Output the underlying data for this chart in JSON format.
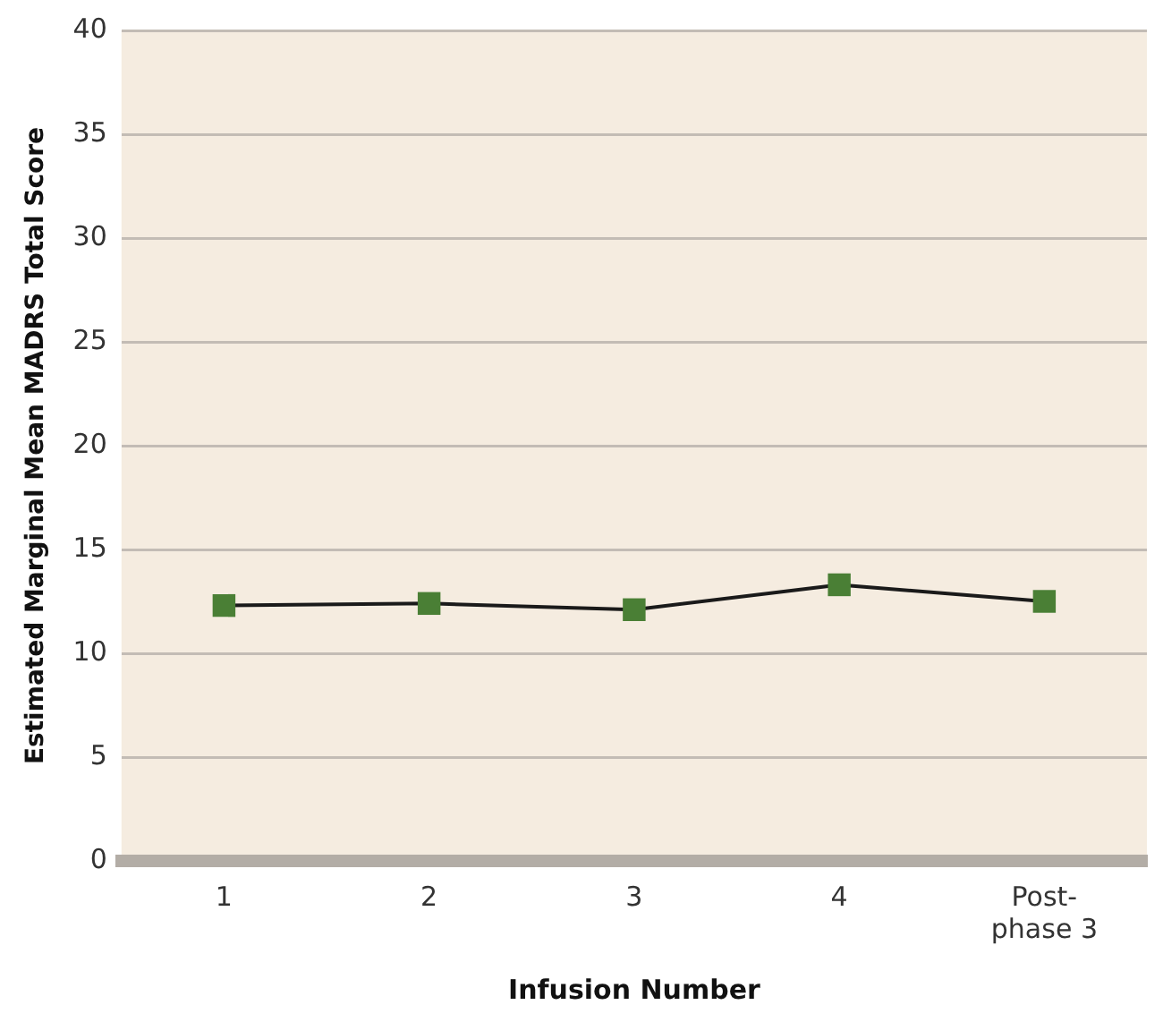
{
  "chart_data": {
    "type": "line",
    "xlabel": "Infusion Number",
    "ylabel": "Estimated Marginal Mean MADRS Total Score",
    "categories": [
      "1",
      "2",
      "3",
      "4",
      "Post-phase 3"
    ],
    "series": [
      {
        "color": "#4a7f35",
        "values": [
          12.3,
          12.4,
          12.1,
          13.3,
          12.5
        ]
      }
    ],
    "ylim": [
      0,
      40
    ],
    "yticks": [
      0,
      5,
      10,
      15,
      20,
      25,
      30,
      35,
      40
    ],
    "grid": "y",
    "legend": false,
    "marker": "square",
    "line_style": "solid"
  }
}
